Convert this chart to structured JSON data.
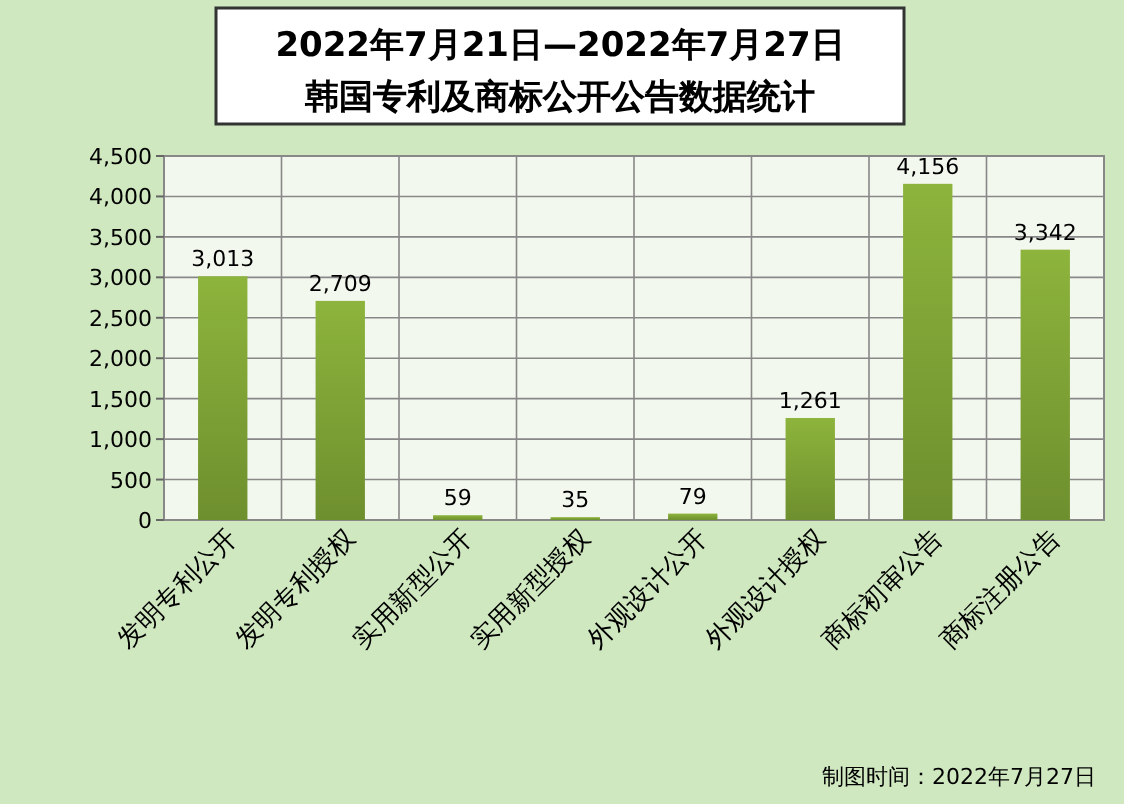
{
  "chart_data": {
    "type": "bar",
    "title": "2022年7月21日—2022年7月27日",
    "subtitle": "韩国专利及商标公开公告数据统计",
    "categories": [
      "发明专利公开",
      "发明专利授权",
      "实用新型公开",
      "实用新型授权",
      "外观设计公开",
      "外观设计授权",
      "商标初审公告",
      "商标注册公告"
    ],
    "values": [
      3013,
      2709,
      59,
      35,
      79,
      1261,
      4156,
      3342
    ],
    "value_labels": [
      "3,013",
      "2,709",
      "59",
      "35",
      "79",
      "1,261",
      "4,156",
      "3,342"
    ],
    "color": "#8db43c",
    "ylim": [
      0,
      4500
    ],
    "yticks": [
      0,
      {
        "value": 500,
        "label": "500"
      },
      {
        "value": 1000,
        "label": "1,000"
      },
      {
        "value": 1500,
        "label": "1,500"
      },
      {
        "value": 2000,
        "label": "2,000"
      },
      {
        "value": 2500,
        "label": "2,500"
      },
      {
        "value": 3000,
        "label": "3,000"
      },
      {
        "value": 3500,
        "label": "3,500"
      },
      {
        "value": 4000,
        "label": "4,000"
      },
      {
        "value": 4500,
        "label": "4,500"
      }
    ],
    "grid": true,
    "annotations": [
      "制图时间：2022年7月27日"
    ]
  }
}
